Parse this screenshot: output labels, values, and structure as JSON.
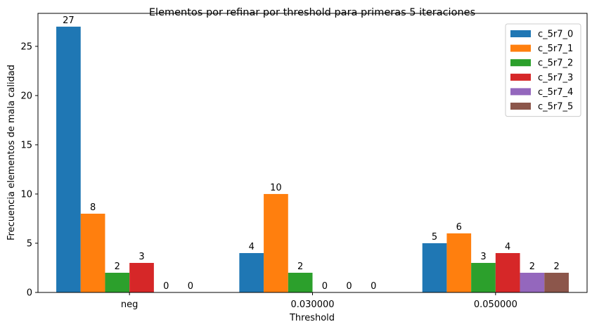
{
  "chart_data": {
    "type": "bar",
    "title": "Elementos por refinar por threshold para primeras 5 iteraciones",
    "xlabel": "Threshold",
    "ylabel": "Frecuencia elementos de mala calidad",
    "categories": [
      "neg",
      "0.030000",
      "0.050000"
    ],
    "ylim": [
      0,
      28.35
    ],
    "yticks": [
      0,
      5,
      10,
      15,
      20,
      25
    ],
    "grid": false,
    "legend_position": "top-right",
    "series": [
      {
        "name": "c_5r7_0",
        "color": "#1f77b4",
        "values": [
          27,
          4,
          5
        ]
      },
      {
        "name": "c_5r7_1",
        "color": "#ff7f0e",
        "values": [
          8,
          10,
          6
        ]
      },
      {
        "name": "c_5r7_2",
        "color": "#2ca02c",
        "values": [
          2,
          2,
          3
        ]
      },
      {
        "name": "c_5r7_3",
        "color": "#d62728",
        "values": [
          3,
          0,
          4
        ]
      },
      {
        "name": "c_5r7_4",
        "color": "#9467bd",
        "values": [
          0,
          0,
          2
        ]
      },
      {
        "name": "c_5r7_5",
        "color": "#8c564b",
        "values": [
          0,
          0,
          2
        ]
      }
    ]
  }
}
